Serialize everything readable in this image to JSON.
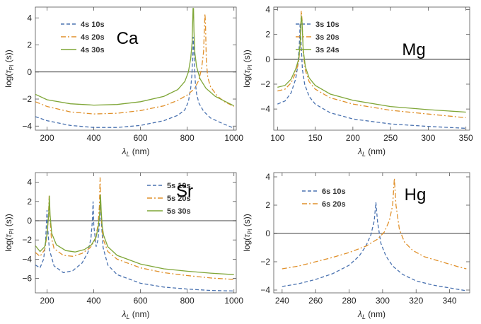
{
  "chart_data": [
    {
      "type": "line",
      "title": "",
      "element": "Ca",
      "xlabel": "λ_L (nm)",
      "ylabel": "log(τ_PI (s))",
      "xlim": [
        150,
        1010
      ],
      "ylim": [
        -4.3,
        4.8
      ],
      "xticks": [
        200,
        400,
        600,
        800,
        1000
      ],
      "yticks": [
        -4,
        -2,
        0,
        2,
        4
      ],
      "legend": "top-left",
      "zero_line": true,
      "series": [
        {
          "name": "4s 10s",
          "style": "dashed",
          "color": "#4a72b0",
          "x": [
            150,
            200,
            300,
            400,
            500,
            600,
            700,
            760,
            790,
            805,
            815,
            820,
            824,
            826,
            830,
            835,
            840,
            850,
            870,
            900,
            950,
            1000
          ],
          "y": [
            -3.3,
            -3.6,
            -3.95,
            -4.1,
            -4.1,
            -3.95,
            -3.6,
            -3.2,
            -2.8,
            -2.2,
            -1.2,
            -0.2,
            1.4,
            2.6,
            0.8,
            -0.8,
            -1.6,
            -2.3,
            -2.9,
            -3.4,
            -3.8,
            -4.15
          ]
        },
        {
          "name": "4s 20s",
          "style": "dashdot",
          "color": "#e0902a",
          "x": [
            150,
            200,
            300,
            400,
            500,
            600,
            700,
            760,
            800,
            830,
            850,
            862,
            870,
            876,
            878,
            882,
            888,
            900,
            930,
            960,
            1000
          ],
          "y": [
            -2.2,
            -2.55,
            -2.95,
            -3.1,
            -3.05,
            -2.85,
            -2.5,
            -2.1,
            -1.7,
            -1.25,
            -0.6,
            0.3,
            1.5,
            4.3,
            3.8,
            0.8,
            -0.4,
            -1.1,
            -1.8,
            -2.2,
            -2.55
          ]
        },
        {
          "name": "4s 30s",
          "style": "solid",
          "color": "#7fa637",
          "x": [
            150,
            200,
            300,
            400,
            500,
            600,
            700,
            760,
            790,
            805,
            815,
            821,
            825,
            827,
            829,
            833,
            840,
            855,
            880,
            920,
            960,
            1000
          ],
          "y": [
            -1.65,
            -2.05,
            -2.35,
            -2.45,
            -2.4,
            -2.2,
            -1.8,
            -1.3,
            -0.7,
            0.0,
            1.0,
            2.2,
            4.7,
            4.7,
            3.0,
            1.4,
            0.4,
            -0.5,
            -1.2,
            -1.8,
            -2.15,
            -2.5
          ]
        }
      ]
    },
    {
      "type": "line",
      "title": "",
      "element": "Mg",
      "xlabel": "λ_L (nm)",
      "ylabel": "log(τ_PI (s))",
      "xlim": [
        95,
        355
      ],
      "ylim": [
        -5.7,
        4.2
      ],
      "xticks": [
        100,
        150,
        200,
        250,
        300,
        350
      ],
      "yticks": [
        -4,
        -2,
        0,
        2,
        4
      ],
      "legend": "top-left",
      "zero_line": true,
      "series": [
        {
          "name": "3s 10s",
          "style": "dashed",
          "color": "#4a72b0",
          "x": [
            100,
            110,
            118,
            124,
            127,
            129,
            130,
            131,
            133,
            136,
            142,
            150,
            170,
            200,
            250,
            300,
            350
          ],
          "y": [
            -3.6,
            -3.35,
            -2.7,
            -1.6,
            -0.5,
            1.2,
            2.9,
            1.6,
            -0.8,
            -2.0,
            -3.0,
            -3.6,
            -4.3,
            -4.8,
            -5.2,
            -5.4,
            -5.55
          ]
        },
        {
          "name": "3s 20s",
          "style": "dashdot",
          "color": "#e0902a",
          "x": [
            100,
            110,
            118,
            124,
            128,
            130,
            131.5,
            132.5,
            134,
            137,
            142,
            150,
            170,
            200,
            250,
            300,
            350
          ],
          "y": [
            -2.55,
            -2.4,
            -1.9,
            -1.1,
            -0.2,
            1.0,
            3.9,
            3.2,
            0.6,
            -0.9,
            -1.8,
            -2.4,
            -3.1,
            -3.6,
            -4.1,
            -4.4,
            -4.7
          ]
        },
        {
          "name": "3s 24s",
          "style": "solid",
          "color": "#7fa637",
          "x": [
            100,
            110,
            118,
            124,
            128,
            130,
            131.5,
            132.5,
            134,
            137,
            142,
            150,
            170,
            200,
            250,
            300,
            350
          ],
          "y": [
            -2.25,
            -2.1,
            -1.6,
            -0.8,
            0.0,
            1.2,
            3.5,
            3.0,
            0.8,
            -0.6,
            -1.5,
            -2.1,
            -2.8,
            -3.3,
            -3.8,
            -4.05,
            -4.25
          ]
        }
      ]
    },
    {
      "type": "line",
      "title": "",
      "element": "Sr",
      "xlabel": "λ_L (nm)",
      "ylabel": "log(τ_PI (s))",
      "xlim": [
        150,
        1010
      ],
      "ylim": [
        -7.5,
        5.0
      ],
      "xticks": [
        200,
        400,
        600,
        800,
        1000
      ],
      "yticks": [
        -6,
        -4,
        -2,
        0,
        2,
        4
      ],
      "legend": "top-left",
      "zero_line": true,
      "series": [
        {
          "name": "5s 10s",
          "style": "dashed",
          "color": "#4a72b0",
          "x": [
            150,
            170,
            185,
            193,
            197,
            200,
            203,
            210,
            230,
            270,
            310,
            350,
            375,
            388,
            394,
            397,
            400,
            410,
            418,
            424,
            428,
            432,
            440,
            460,
            500,
            600,
            700,
            800,
            900,
            1000
          ],
          "y": [
            -4.6,
            -4.9,
            -4.0,
            -2.5,
            -0.5,
            1.1,
            -0.8,
            -3.0,
            -4.7,
            -5.4,
            -5.2,
            -4.4,
            -3.3,
            -1.8,
            0.0,
            2.0,
            -0.5,
            -2.7,
            -2.0,
            -0.3,
            2.5,
            0.0,
            -2.8,
            -4.6,
            -5.6,
            -6.5,
            -6.9,
            -7.1,
            -7.25,
            -7.3
          ]
        },
        {
          "name": "5s 20s",
          "style": "dashdot",
          "color": "#e0902a",
          "x": [
            150,
            170,
            190,
            200,
            206,
            209,
            212,
            218,
            230,
            270,
            310,
            350,
            385,
            405,
            418,
            424,
            427,
            430,
            434,
            440,
            460,
            500,
            600,
            700,
            800,
            900,
            1000
          ],
          "y": [
            -3.3,
            -3.7,
            -3.0,
            -1.5,
            0.5,
            2.6,
            0.5,
            -1.7,
            -2.9,
            -3.6,
            -3.7,
            -3.4,
            -2.8,
            -2.0,
            -0.5,
            1.5,
            4.5,
            1.5,
            -0.5,
            -1.9,
            -3.2,
            -4.0,
            -4.9,
            -5.4,
            -5.7,
            -5.95,
            -6.1
          ]
        },
        {
          "name": "5s 30s",
          "style": "solid",
          "color": "#7fa637",
          "x": [
            150,
            170,
            190,
            200,
            207,
            210,
            213,
            220,
            240,
            280,
            320,
            360,
            390,
            410,
            420,
            426,
            429,
            432,
            436,
            442,
            460,
            500,
            600,
            700,
            800,
            900,
            1000
          ],
          "y": [
            -2.6,
            -3.2,
            -2.7,
            -1.4,
            0.6,
            2.6,
            0.6,
            -1.3,
            -2.5,
            -3.1,
            -3.25,
            -3.0,
            -2.5,
            -1.7,
            -0.5,
            1.0,
            2.7,
            1.0,
            -0.5,
            -1.5,
            -2.7,
            -3.6,
            -4.5,
            -5.0,
            -5.25,
            -5.45,
            -5.6
          ]
        }
      ]
    },
    {
      "type": "line",
      "title": "",
      "element": "Hg",
      "xlabel": "λ_L (nm)",
      "ylabel": "log(τ_PI (s))",
      "xlim": [
        235,
        352
      ],
      "ylim": [
        -4.2,
        4.3
      ],
      "xticks": [
        240,
        260,
        280,
        300,
        320,
        340
      ],
      "yticks": [
        -4,
        -2,
        0,
        2,
        4
      ],
      "legend": "top-left",
      "zero_line": true,
      "series": [
        {
          "name": "6s 10s",
          "style": "dashed",
          "color": "#4a72b0",
          "x": [
            240,
            250,
            260,
            270,
            280,
            286,
            290,
            293,
            295,
            296,
            297,
            299,
            302,
            306,
            312,
            320,
            330,
            340,
            350
          ],
          "y": [
            -3.75,
            -3.55,
            -3.25,
            -2.85,
            -2.25,
            -1.6,
            -0.9,
            -0.1,
            0.9,
            2.2,
            0.8,
            -0.7,
            -1.6,
            -2.3,
            -2.9,
            -3.35,
            -3.65,
            -3.85,
            -4.05
          ]
        },
        {
          "name": "6s 20s",
          "style": "dashdot",
          "color": "#e0902a",
          "x": [
            240,
            250,
            260,
            270,
            280,
            290,
            297,
            301,
            304,
            306,
            307,
            308,
            310,
            313,
            318,
            325,
            335,
            345,
            350
          ],
          "y": [
            -2.5,
            -2.3,
            -2.0,
            -1.7,
            -1.35,
            -0.9,
            -0.4,
            0.1,
            0.9,
            2.0,
            3.9,
            2.0,
            0.3,
            -0.6,
            -1.2,
            -1.65,
            -2.0,
            -2.35,
            -2.5
          ]
        }
      ]
    }
  ]
}
